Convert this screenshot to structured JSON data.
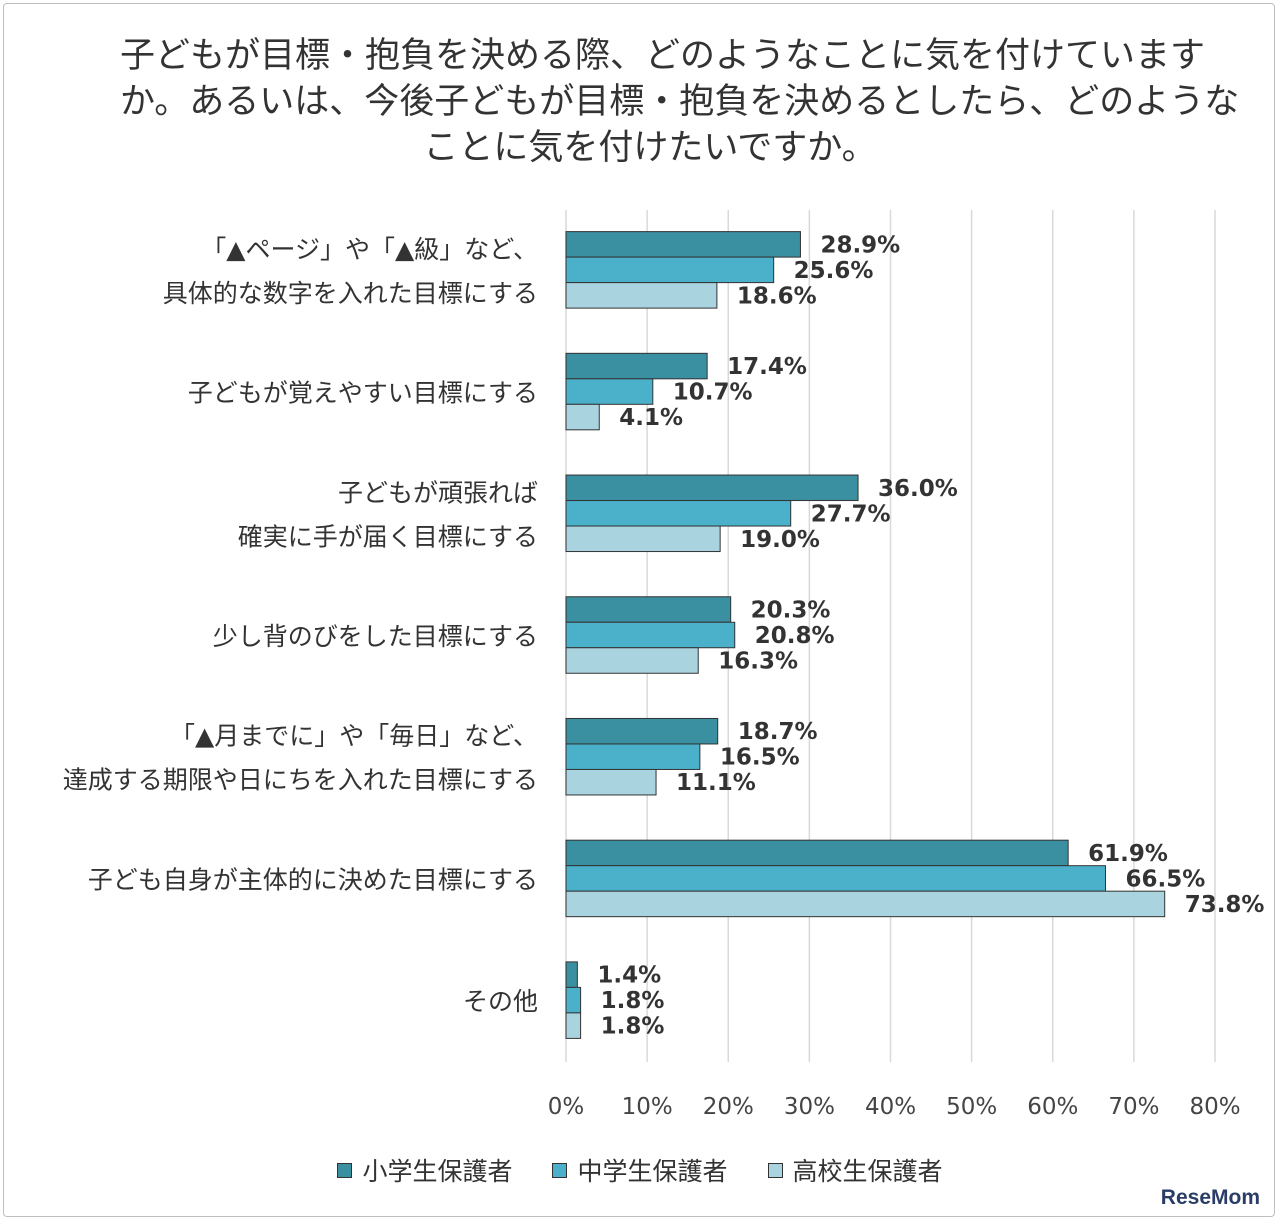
{
  "title_lines": [
    "子どもが目標・抱負を決める際、どのようなことに気を付けていますか。あるいは、今後子どもが目標・抱負を決めるとしたら、どのような",
    "",
    ""
  ],
  "title_display": [
    "子どもが目標・抱負を決める際、どのようなことに気を付けています",
    "か。あるいは、今後子どもが目標・抱負を決めるとしたら、どのような",
    "ことに気を付けたいですか。"
  ],
  "watermark": "ReseMom",
  "colors": {
    "elementary": "#3a8fa0",
    "junior_high": "#4bb0ca",
    "high_school": "#a9d3df",
    "text": "#333333",
    "grid": "#d9d9d9"
  },
  "chart_data": {
    "type": "bar",
    "orientation": "horizontal",
    "categories": [
      [
        "「▲ページ」や「▲級」など、",
        "具体的な数字を入れた目標にする"
      ],
      [
        "子どもが覚えやすい目標にする"
      ],
      [
        "子どもが頑張れば",
        "確実に手が届く目標にする"
      ],
      [
        "少し背のびをした目標にする"
      ],
      [
        "「▲月までに」や「毎日」など、",
        "達成する期限や日にちを入れた目標にする"
      ],
      [
        "子ども自身が主体的に決めた目標にする"
      ],
      [
        "その他"
      ]
    ],
    "series": [
      {
        "name": "小学生保護者",
        "values": [
          28.9,
          17.4,
          36.0,
          20.3,
          18.7,
          61.9,
          1.4
        ]
      },
      {
        "name": "中学生保護者",
        "values": [
          25.6,
          10.7,
          27.7,
          20.8,
          16.5,
          66.5,
          1.8
        ]
      },
      {
        "name": "高校生保護者",
        "values": [
          18.6,
          4.1,
          19.0,
          16.3,
          11.1,
          73.8,
          1.8
        ]
      }
    ],
    "xlim": [
      0,
      80
    ],
    "xticks": [
      "0%",
      "10%",
      "20%",
      "30%",
      "40%",
      "50%",
      "60%",
      "70%",
      "80%"
    ],
    "value_suffix": "%",
    "grid": true,
    "legend_position": "bottom"
  }
}
